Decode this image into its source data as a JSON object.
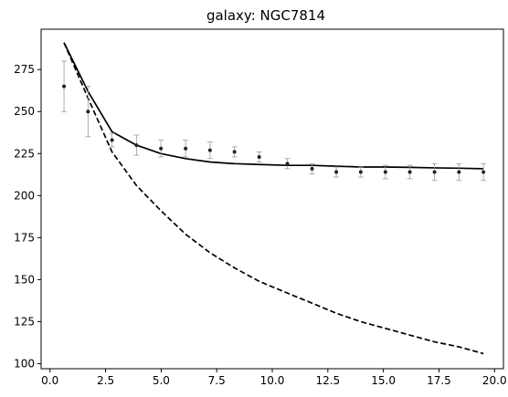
{
  "chart_data": {
    "type": "line",
    "title": "galaxy: NGC7814",
    "xlabel": "",
    "ylabel": "",
    "xlim": [
      -0.4,
      20.4
    ],
    "ylim": [
      97,
      299
    ],
    "x_ticks": [
      0.0,
      2.5,
      5.0,
      7.5,
      10.0,
      12.5,
      15.0,
      17.5,
      20.0
    ],
    "x_tick_labels": [
      "0.0",
      "2.5",
      "5.0",
      "7.5",
      "10.0",
      "12.5",
      "15.0",
      "17.5",
      "20.0"
    ],
    "y_ticks": [
      100,
      125,
      150,
      175,
      200,
      225,
      250,
      275
    ],
    "y_tick_labels": [
      "100",
      "125",
      "150",
      "175",
      "200",
      "225",
      "250",
      "275"
    ],
    "grid": false,
    "observed": {
      "x": [
        0.63,
        1.71,
        2.79,
        3.89,
        4.99,
        6.1,
        7.2,
        8.3,
        9.41,
        10.68,
        11.79,
        12.88,
        13.98,
        15.09,
        16.19,
        17.3,
        18.4,
        19.5
      ],
      "y": [
        265,
        250,
        233,
        230,
        228,
        228,
        227,
        226,
        223,
        219,
        216,
        214,
        214,
        214,
        214,
        214,
        214,
        214
      ],
      "err": [
        15,
        15,
        4,
        6,
        5,
        5,
        5,
        3,
        3,
        3,
        3,
        3,
        3,
        4,
        4,
        5,
        5,
        5
      ],
      "marker_color": "#222222",
      "error_color": "#999999"
    },
    "series": [
      {
        "x": [
          0.63,
          1.71,
          2.79,
          3.89,
          4.99,
          6.1,
          7.2,
          8.3,
          9.41,
          10.68,
          11.79,
          12.88,
          13.98,
          15.09,
          16.19,
          17.3,
          18.4,
          19.5
        ],
        "values": [
          291,
          262,
          238,
          230,
          225,
          222,
          220,
          219,
          218.5,
          218,
          218,
          217.5,
          217,
          217,
          216.8,
          216.5,
          216.3,
          216
        ],
        "style": "solid",
        "color": "#000000"
      },
      {
        "x": [
          0.63,
          1.71,
          2.79,
          3.89,
          4.99,
          6.1,
          7.2,
          8.3,
          9.41,
          10.68,
          11.79,
          12.88,
          13.98,
          15.09,
          16.19,
          17.3,
          18.4,
          19.5
        ],
        "values": [
          291,
          258,
          226,
          206,
          191,
          177,
          166,
          157,
          149,
          142,
          136,
          130,
          125,
          121,
          117,
          113,
          110,
          106
        ],
        "style": "dashed",
        "color": "#000000"
      }
    ]
  }
}
